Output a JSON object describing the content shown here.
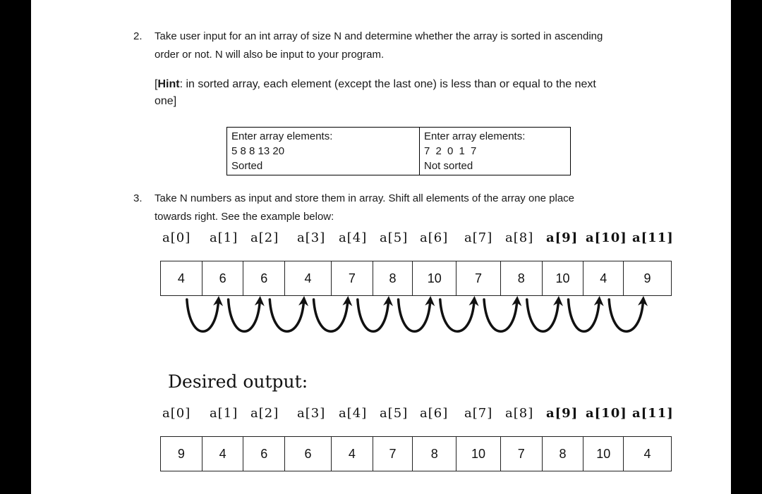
{
  "q2": {
    "number": "2.",
    "line1": "Take user input for an int array of size N and determine whether the array is sorted in ascending",
    "line2": "order or not. N will also be input to your program.",
    "hint_label": "Hint",
    "hint_open": "[",
    "hint_rest1": ": in sorted array, each element (except the last one) is less than or equal to the next",
    "hint_rest2": "one]",
    "examples": [
      {
        "prompt": "Enter array elements:",
        "input": "5 8 8 13 20",
        "result": "Sorted"
      },
      {
        "prompt": "Enter array elements:",
        "input": "7 2 0 1 7",
        "result": "Not sorted"
      }
    ]
  },
  "q3": {
    "number": "3.",
    "line1": "Take N numbers as input and store them in array. Shift all elements of the array one place",
    "line2": "towards right. See the example below:",
    "index_labels": [
      "a[0]",
      "a[1]",
      "a[2]",
      "a[3]",
      "a[4]",
      "a[5]",
      "a[6]",
      "a[7]",
      "a[8]",
      "a[9]",
      "a[10]",
      "a[11]"
    ],
    "input_array": [
      "4",
      "6",
      "6",
      "4",
      "7",
      "8",
      "10",
      "7",
      "8",
      "10",
      "4",
      "9"
    ],
    "desired_heading": "Desired output:",
    "output_array": [
      "9",
      "4",
      "6",
      "6",
      "4",
      "7",
      "8",
      "10",
      "7",
      "8",
      "10",
      "4"
    ]
  }
}
